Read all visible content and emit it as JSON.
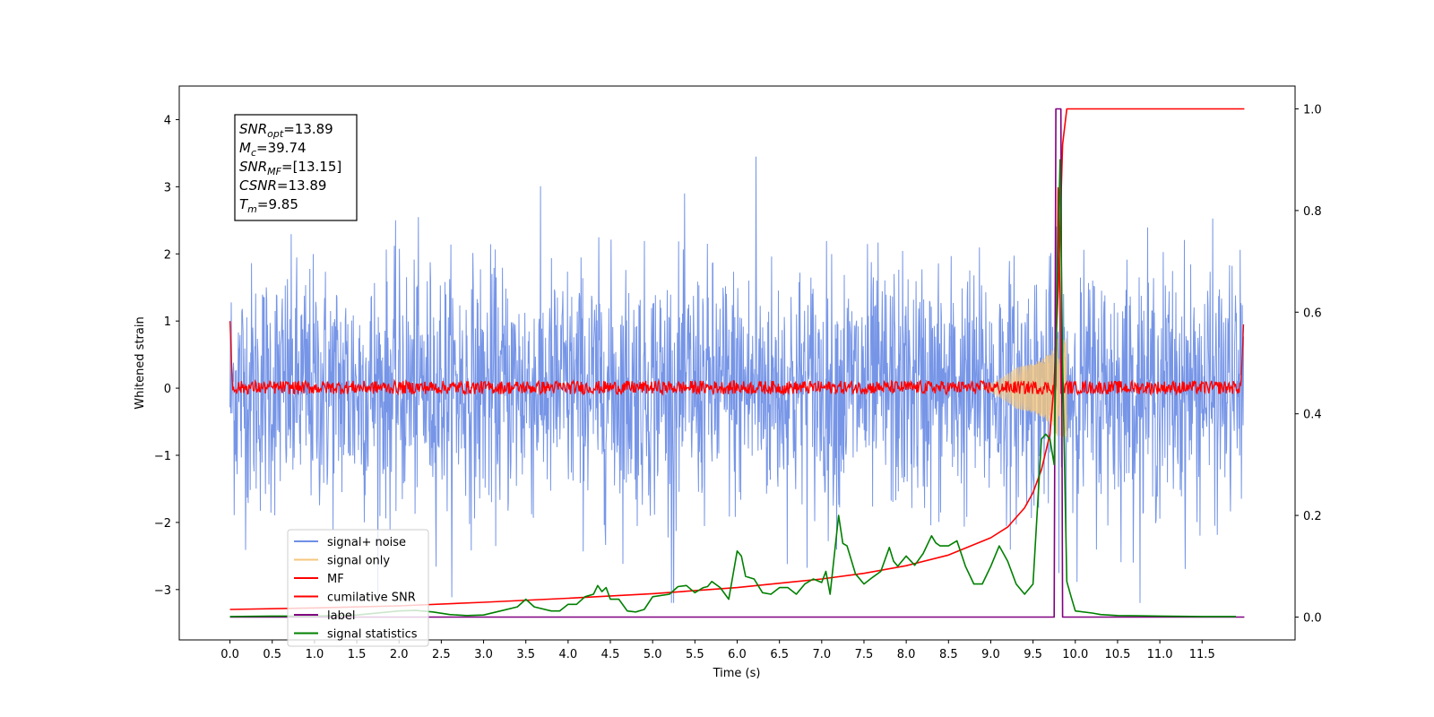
{
  "chart_data": {
    "type": "line",
    "xlabel": "Time (s)",
    "ylabel": "Whitened strain",
    "xlim": [
      -0.6,
      12.6
    ],
    "ylim": [
      -3.75,
      4.5
    ],
    "y2lim": [
      -0.045,
      1.045
    ],
    "xticks": [
      0.0,
      0.5,
      1.0,
      1.5,
      2.0,
      2.5,
      3.0,
      3.5,
      4.0,
      4.5,
      5.0,
      5.5,
      6.0,
      6.5,
      7.0,
      7.5,
      8.0,
      8.5,
      9.0,
      9.5,
      10.0,
      10.5,
      11.0,
      11.5
    ],
    "xtick_labels": [
      "0.0",
      "0.5",
      "1.0",
      "1.5",
      "2.0",
      "2.5",
      "3.0",
      "3.5",
      "4.0",
      "4.5",
      "5.0",
      "5.5",
      "6.0",
      "6.5",
      "7.0",
      "7.5",
      "8.0",
      "8.5",
      "9.0",
      "9.5",
      "10.0",
      "10.5",
      "11.0",
      "11.5"
    ],
    "yticks": [
      -3,
      -2,
      -1,
      0,
      1,
      2,
      3,
      4
    ],
    "ytick_labels": [
      "−3",
      "−2",
      "−1",
      "0",
      "1",
      "2",
      "3",
      "4"
    ],
    "y2ticks": [
      0.0,
      0.2,
      0.4,
      0.6,
      0.8,
      1.0
    ],
    "y2tick_labels": [
      "0.0",
      "0.2",
      "0.4",
      "0.6",
      "0.8",
      "1.0"
    ],
    "grid": false,
    "legend_position": "lower-left",
    "annotation": [
      {
        "name": "SNR",
        "sub": "opt",
        "value": "=13.89"
      },
      {
        "name": "M",
        "sub": "c",
        "value": "=39.74"
      },
      {
        "name": "SNR",
        "sub": "MF",
        "value": "=[13.15]"
      },
      {
        "name": "CSNR",
        "sub": "",
        "value": "=13.89"
      },
      {
        "name": "T",
        "sub": "m",
        "value": "=9.85"
      }
    ],
    "series": [
      {
        "name": "signal+ noise",
        "color": "#6f8fe6",
        "axis": "left",
        "kind": "noise",
        "amplitude_p95": 1.8,
        "peak_max": 3.45,
        "peak_min": -3.2,
        "x_range": [
          0.0,
          11.99
        ]
      },
      {
        "name": "signal only",
        "color": "#f5c77e",
        "axis": "left",
        "kind": "chirp",
        "t_merge": 9.85,
        "peak": 0.75
      },
      {
        "name": "MF",
        "color": "#ff0000",
        "axis": "left",
        "kind": "mf",
        "start": 1.0,
        "band": 0.1,
        "peak_value": 3.35,
        "peak_time": 9.8,
        "end": 0.95
      },
      {
        "name": "cumilative SNR",
        "color": "#ff0000",
        "axis": "right",
        "x": [
          0.0,
          1.0,
          2.0,
          3.0,
          4.0,
          5.0,
          6.0,
          7.0,
          7.5,
          8.0,
          8.5,
          9.0,
          9.2,
          9.4,
          9.5,
          9.6,
          9.7,
          9.75,
          9.8,
          9.85,
          9.9,
          12.0
        ],
        "values": [
          0.015,
          0.018,
          0.022,
          0.029,
          0.037,
          0.046,
          0.058,
          0.075,
          0.086,
          0.101,
          0.122,
          0.156,
          0.177,
          0.215,
          0.245,
          0.29,
          0.36,
          0.46,
          0.65,
          0.93,
          1.0,
          1.0
        ]
      },
      {
        "name": "label",
        "color": "#800080",
        "axis": "right",
        "x": [
          0.0,
          9.75,
          9.77,
          9.83,
          9.85,
          12.0
        ],
        "values": [
          0.0,
          0.0,
          1.0,
          1.0,
          0.0,
          0.0
        ]
      },
      {
        "name": "signal statistics",
        "color": "#008000",
        "axis": "right",
        "x": [
          0.0,
          0.5,
          1.0,
          1.5,
          2.0,
          2.2,
          2.4,
          2.6,
          2.8,
          3.0,
          3.2,
          3.4,
          3.5,
          3.6,
          3.8,
          3.9,
          4.0,
          4.1,
          4.2,
          4.3,
          4.35,
          4.4,
          4.45,
          4.5,
          4.6,
          4.7,
          4.8,
          4.9,
          5.0,
          5.2,
          5.3,
          5.4,
          5.5,
          5.6,
          5.65,
          5.7,
          5.8,
          5.9,
          6.0,
          6.05,
          6.1,
          6.2,
          6.3,
          6.4,
          6.5,
          6.6,
          6.7,
          6.8,
          6.9,
          7.0,
          7.05,
          7.1,
          7.2,
          7.25,
          7.3,
          7.4,
          7.5,
          7.6,
          7.7,
          7.8,
          7.85,
          7.9,
          8.0,
          8.1,
          8.2,
          8.3,
          8.35,
          8.4,
          8.5,
          8.6,
          8.7,
          8.8,
          8.9,
          9.0,
          9.1,
          9.2,
          9.3,
          9.4,
          9.5,
          9.6,
          9.65,
          9.7,
          9.75,
          9.78,
          9.82,
          9.85,
          9.9,
          9.95,
          10.0,
          10.2,
          10.3,
          10.5,
          11.0,
          11.5,
          11.9
        ],
        "values": [
          0.001,
          0.002,
          0.002,
          0.004,
          0.012,
          0.013,
          0.01,
          0.005,
          0.003,
          0.004,
          0.012,
          0.02,
          0.035,
          0.02,
          0.012,
          0.012,
          0.025,
          0.025,
          0.04,
          0.045,
          0.062,
          0.05,
          0.058,
          0.035,
          0.035,
          0.012,
          0.01,
          0.015,
          0.04,
          0.045,
          0.06,
          0.062,
          0.048,
          0.058,
          0.06,
          0.07,
          0.058,
          0.035,
          0.13,
          0.12,
          0.08,
          0.075,
          0.048,
          0.045,
          0.058,
          0.058,
          0.045,
          0.065,
          0.075,
          0.068,
          0.09,
          0.045,
          0.2,
          0.145,
          0.14,
          0.085,
          0.065,
          0.078,
          0.09,
          0.137,
          0.11,
          0.1,
          0.12,
          0.102,
          0.125,
          0.16,
          0.146,
          0.14,
          0.14,
          0.15,
          0.1,
          0.065,
          0.065,
          0.1,
          0.14,
          0.11,
          0.065,
          0.045,
          0.065,
          0.35,
          0.36,
          0.35,
          0.3,
          0.6,
          0.9,
          0.5,
          0.07,
          0.04,
          0.012,
          0.008,
          0.005,
          0.003,
          0.002,
          0.001,
          0.001
        ]
      }
    ]
  }
}
